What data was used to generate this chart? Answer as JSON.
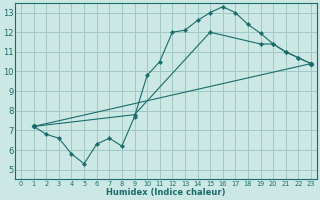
{
  "xlabel": "Humidex (Indice chaleur)",
  "bg_color": "#cce8e4",
  "grid_color": "#a0c8c4",
  "line_color": "#1a6b6b",
  "xlim": [
    -0.5,
    23.5
  ],
  "ylim": [
    4.5,
    13.5
  ],
  "xticks": [
    0,
    1,
    2,
    3,
    4,
    5,
    6,
    7,
    8,
    9,
    10,
    11,
    12,
    13,
    14,
    15,
    16,
    17,
    18,
    19,
    20,
    21,
    22,
    23
  ],
  "yticks": [
    5,
    6,
    7,
    8,
    9,
    10,
    11,
    12,
    13
  ],
  "line1_x": [
    1,
    2,
    3,
    4,
    5,
    6,
    7,
    8,
    9,
    10,
    11,
    12,
    13,
    14,
    15,
    16,
    17,
    18,
    19,
    20,
    21,
    22,
    23
  ],
  "line1_y": [
    7.2,
    6.8,
    6.6,
    5.8,
    5.3,
    6.3,
    6.6,
    6.2,
    7.7,
    9.8,
    10.5,
    12.0,
    12.1,
    12.6,
    13.0,
    13.3,
    13.0,
    12.4,
    11.95,
    11.4,
    11.0,
    10.7,
    10.4
  ],
  "line2_x": [
    1,
    23
  ],
  "line2_y": [
    7.2,
    10.4
  ],
  "line3_x": [
    1,
    9,
    15,
    19,
    20,
    21,
    22,
    23
  ],
  "line3_y": [
    7.2,
    7.8,
    12.0,
    11.4,
    11.4,
    11.0,
    10.7,
    10.4
  ]
}
